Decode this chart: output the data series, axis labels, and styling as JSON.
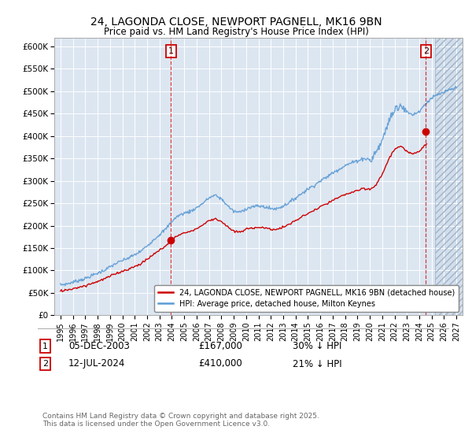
{
  "title": "24, LAGONDA CLOSE, NEWPORT PAGNELL, MK16 9BN",
  "subtitle": "Price paid vs. HM Land Registry's House Price Index (HPI)",
  "ylim": [
    0,
    620000
  ],
  "yticks": [
    0,
    50000,
    100000,
    150000,
    200000,
    250000,
    300000,
    350000,
    400000,
    450000,
    500000,
    550000,
    600000
  ],
  "ytick_labels": [
    "£0",
    "£50K",
    "£100K",
    "£150K",
    "£200K",
    "£250K",
    "£300K",
    "£350K",
    "£400K",
    "£450K",
    "£500K",
    "£550K",
    "£600K"
  ],
  "xlim_start": 1994.5,
  "xlim_end": 2027.5,
  "sale1_date": 2003.92,
  "sale1_price": 167000,
  "sale2_date": 2024.54,
  "sale2_price": 410000,
  "legend_line1": "24, LAGONDA CLOSE, NEWPORT PAGNELL, MK16 9BN (detached house)",
  "legend_line2": "HPI: Average price, detached house, Milton Keynes",
  "annotation1_date": "05-DEC-2003",
  "annotation1_price": "£167,000",
  "annotation1_hpi": "30% ↓ HPI",
  "annotation2_date": "12-JUL-2024",
  "annotation2_price": "£410,000",
  "annotation2_hpi": "21% ↓ HPI",
  "footer": "Contains HM Land Registry data © Crown copyright and database right 2025.\nThis data is licensed under the Open Government Licence v3.0.",
  "line_color_property": "#cc0000",
  "line_color_hpi": "#5b9bd5",
  "bg_color": "#dce6f1"
}
